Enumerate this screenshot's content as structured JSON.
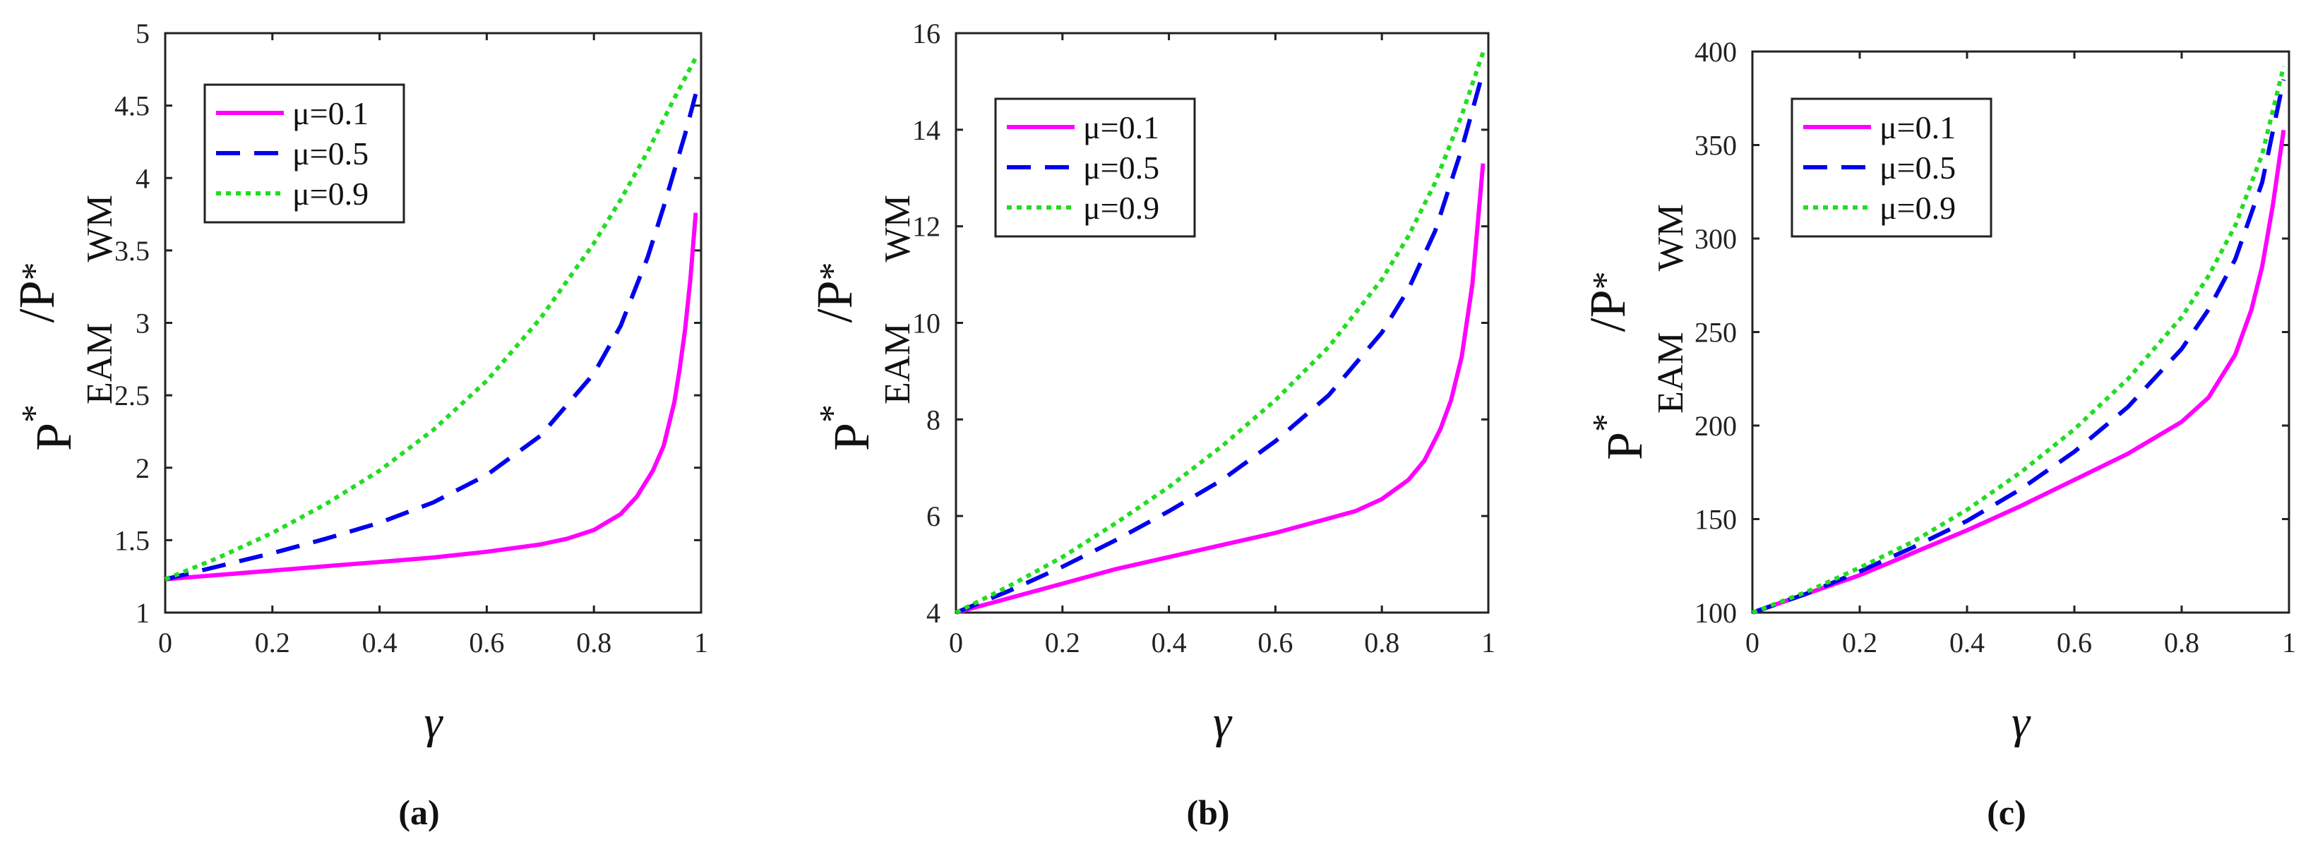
{
  "y_label": {
    "p1": "P",
    "star1": "*",
    "sub1": "EAM",
    "slash": "/P",
    "star2": "*",
    "sub2": "WM"
  },
  "chart_data": [
    {
      "type": "line",
      "panel_label": "(a)",
      "xlabel": "γ",
      "xlim": [
        0,
        1
      ],
      "ylim": [
        1,
        5
      ],
      "xticks": [
        0,
        0.2,
        0.4,
        0.6,
        0.8,
        1
      ],
      "xtick_labels": [
        "0",
        "0.2",
        "0.4",
        "0.6",
        "0.8",
        "1"
      ],
      "yticks": [
        1,
        1.5,
        2,
        2.5,
        3,
        3.5,
        4,
        4.5,
        5
      ],
      "ytick_labels": [
        "1",
        "1.5",
        "2",
        "2.5",
        "3",
        "3.5",
        "4",
        "4.5",
        "5"
      ],
      "legend_position": "top-left",
      "series": [
        {
          "name": "μ=0.1",
          "legend_label": "μ=0.1",
          "color": "#ff00ff",
          "dash": "solid",
          "x": [
            0,
            0.1,
            0.2,
            0.3,
            0.4,
            0.5,
            0.6,
            0.7,
            0.75,
            0.8,
            0.85,
            0.88,
            0.91,
            0.93,
            0.95,
            0.96,
            0.97,
            0.98,
            0.99
          ],
          "y": [
            1.23,
            1.26,
            1.29,
            1.32,
            1.35,
            1.38,
            1.42,
            1.47,
            1.51,
            1.57,
            1.68,
            1.8,
            1.98,
            2.15,
            2.45,
            2.68,
            2.95,
            3.3,
            3.76
          ]
        },
        {
          "name": "μ=0.5",
          "legend_label": "μ=0.5",
          "color": "#0000ee",
          "dash": "dashed",
          "x": [
            0,
            0.1,
            0.2,
            0.3,
            0.4,
            0.5,
            0.6,
            0.7,
            0.8,
            0.85,
            0.9,
            0.93,
            0.95,
            0.97,
            0.99
          ],
          "y": [
            1.23,
            1.32,
            1.41,
            1.51,
            1.62,
            1.76,
            1.95,
            2.22,
            2.65,
            2.98,
            3.45,
            3.8,
            4.05,
            4.3,
            4.58
          ]
        },
        {
          "name": "μ=0.9",
          "legend_label": "μ=0.9",
          "color": "#22dd22",
          "dash": "dotted",
          "x": [
            0,
            0.1,
            0.2,
            0.3,
            0.4,
            0.5,
            0.6,
            0.7,
            0.8,
            0.85,
            0.9,
            0.95,
            0.99
          ],
          "y": [
            1.23,
            1.38,
            1.55,
            1.75,
            1.98,
            2.26,
            2.6,
            3.03,
            3.55,
            3.85,
            4.18,
            4.55,
            4.83
          ]
        }
      ]
    },
    {
      "type": "line",
      "panel_label": "(b)",
      "xlabel": "γ",
      "xlim": [
        0,
        1
      ],
      "ylim": [
        4,
        16
      ],
      "xticks": [
        0,
        0.2,
        0.4,
        0.6,
        0.8,
        1
      ],
      "xtick_labels": [
        "0",
        "0.2",
        "0.4",
        "0.6",
        "0.8",
        "1"
      ],
      "yticks": [
        4,
        6,
        8,
        10,
        12,
        14,
        16
      ],
      "ytick_labels": [
        "4",
        "6",
        "8",
        "10",
        "12",
        "14",
        "16"
      ],
      "legend_position": "top-left",
      "series": [
        {
          "name": "μ=0.1",
          "legend_label": "μ=0.1",
          "color": "#ff00ff",
          "dash": "solid",
          "x": [
            0,
            0.1,
            0.2,
            0.3,
            0.4,
            0.5,
            0.6,
            0.7,
            0.75,
            0.8,
            0.85,
            0.88,
            0.91,
            0.93,
            0.95,
            0.97,
            0.99
          ],
          "y": [
            4,
            4.3,
            4.6,
            4.9,
            5.15,
            5.4,
            5.65,
            5.95,
            6.1,
            6.35,
            6.75,
            7.15,
            7.8,
            8.4,
            9.3,
            10.8,
            13.3
          ]
        },
        {
          "name": "μ=0.5",
          "legend_label": "μ=0.5",
          "color": "#0000ee",
          "dash": "dashed",
          "x": [
            0,
            0.1,
            0.2,
            0.3,
            0.4,
            0.5,
            0.6,
            0.7,
            0.8,
            0.85,
            0.9,
            0.95,
            0.99
          ],
          "y": [
            4,
            4.45,
            4.95,
            5.5,
            6.1,
            6.75,
            7.55,
            8.5,
            9.8,
            10.7,
            11.9,
            13.6,
            15.2
          ]
        },
        {
          "name": "μ=0.9",
          "legend_label": "μ=0.9",
          "color": "#22dd22",
          "dash": "dotted",
          "x": [
            0,
            0.1,
            0.2,
            0.3,
            0.4,
            0.5,
            0.6,
            0.7,
            0.8,
            0.85,
            0.9,
            0.95,
            0.99
          ],
          "y": [
            4,
            4.55,
            5.15,
            5.85,
            6.6,
            7.45,
            8.4,
            9.5,
            10.9,
            11.8,
            12.9,
            14.3,
            15.6
          ]
        }
      ]
    },
    {
      "type": "line",
      "panel_label": "(c)",
      "xlabel": "γ",
      "xlim": [
        0,
        1
      ],
      "ylim": [
        100,
        400
      ],
      "xticks": [
        0,
        0.2,
        0.4,
        0.6,
        0.8,
        1
      ],
      "xtick_labels": [
        "0",
        "0.2",
        "0.4",
        "0.6",
        "0.8",
        "1"
      ],
      "yticks": [
        100,
        150,
        200,
        250,
        300,
        350,
        400
      ],
      "ytick_labels": [
        "100",
        "150",
        "200",
        "250",
        "300",
        "350",
        "400"
      ],
      "legend_position": "top-left",
      "series": [
        {
          "name": "μ=0.1",
          "legend_label": "μ=0.1",
          "color": "#ff00ff",
          "dash": "solid",
          "x": [
            0,
            0.1,
            0.2,
            0.3,
            0.4,
            0.5,
            0.6,
            0.7,
            0.8,
            0.85,
            0.9,
            0.93,
            0.95,
            0.97,
            0.99
          ],
          "y": [
            100,
            110,
            120,
            132,
            144,
            157,
            171,
            185,
            202,
            215,
            238,
            262,
            285,
            318,
            358
          ]
        },
        {
          "name": "μ=0.5",
          "legend_label": "μ=0.5",
          "color": "#0000ee",
          "dash": "dashed",
          "x": [
            0,
            0.1,
            0.2,
            0.3,
            0.4,
            0.5,
            0.6,
            0.7,
            0.8,
            0.85,
            0.9,
            0.95,
            0.99
          ],
          "y": [
            100,
            110,
            122,
            135,
            149,
            166,
            186,
            210,
            241,
            262,
            289,
            330,
            385
          ]
        },
        {
          "name": "μ=0.9",
          "legend_label": "μ=0.9",
          "color": "#22dd22",
          "dash": "dotted",
          "x": [
            0,
            0.1,
            0.2,
            0.3,
            0.4,
            0.5,
            0.6,
            0.7,
            0.8,
            0.85,
            0.9,
            0.95,
            0.99
          ],
          "y": [
            100,
            111,
            124,
            138,
            155,
            175,
            198,
            225,
            258,
            280,
            307,
            345,
            392
          ]
        }
      ]
    }
  ]
}
